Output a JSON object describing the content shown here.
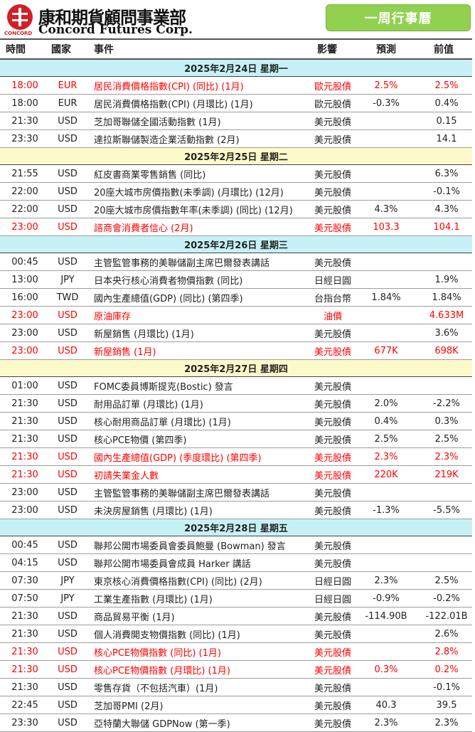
{
  "header": {
    "logo_sub": "CONCORD",
    "brand_cn": "康和期貨顧問事業部",
    "brand_en": "Concord Futures Corp.",
    "badge": "一周行事曆"
  },
  "columns": {
    "time": "時間",
    "country": "國家",
    "event": "事件",
    "impact": "影響",
    "forecast": "預測",
    "previous": "前值"
  },
  "days": [
    {
      "date": "2025年2月24日  星期一",
      "rows": [
        {
          "time": "18:00",
          "country": "EUR",
          "event": "居民消費價格指數(CPI) (同比) (1月)",
          "impact": "歐元股債",
          "forecast": "2.5%",
          "previous": "2.5%",
          "highlight": true
        },
        {
          "time": "18:00",
          "country": "EUR",
          "event": "居民消費價格指數(CPI) (月環比) (1月)",
          "impact": "歐元股債",
          "forecast": "-0.3%",
          "previous": "0.4%",
          "highlight": false
        },
        {
          "time": "21:30",
          "country": "USD",
          "event": "芝加哥聯儲全國活動指數 (1月)",
          "impact": "美元股債",
          "forecast": "",
          "previous": "0.15",
          "highlight": false
        },
        {
          "time": "23:30",
          "country": "USD",
          "event": "達拉斯聯儲製造企業活動指數 (2月)",
          "impact": "美元股債",
          "forecast": "",
          "previous": "14.1",
          "highlight": false
        }
      ]
    },
    {
      "date": "2025年2月25日  星期二",
      "rows": [
        {
          "time": "21:55",
          "country": "USD",
          "event": "紅皮書商業零售銷售 (同比)",
          "impact": "美元股債",
          "forecast": "",
          "previous": "6.3%",
          "highlight": false
        },
        {
          "time": "22:00",
          "country": "USD",
          "event": "20座大城市房價指數(未季調) (月環比) (12月)",
          "impact": "美元股債",
          "forecast": "",
          "previous": "-0.1%",
          "highlight": false
        },
        {
          "time": "22:00",
          "country": "USD",
          "event": "20座大城市房價指數年率(未季調) (同比) (12月)",
          "impact": "美元股債",
          "forecast": "4.3%",
          "previous": "4.3%",
          "highlight": false
        },
        {
          "time": "23:00",
          "country": "USD",
          "event": "諮商會消費者信心 (2月)",
          "impact": "美元股債",
          "forecast": "103.3",
          "previous": "104.1",
          "highlight": true
        }
      ]
    },
    {
      "date": "2025年2月26日  星期三",
      "rows": [
        {
          "time": "00:45",
          "country": "USD",
          "event": "主管監管事務的美聯儲副主席巴爾發表講話",
          "impact": "美元股債",
          "forecast": "",
          "previous": "",
          "highlight": false
        },
        {
          "time": "13:00",
          "country": "JPY",
          "event": "日本央行核心消費者物價指數 (同比)",
          "impact": "日經日圓",
          "forecast": "",
          "previous": "1.9%",
          "highlight": false
        },
        {
          "time": "16:00",
          "country": "TWD",
          "event": "國內生產總值(GDP) (同比) (第四季)",
          "impact": "台指台幣",
          "forecast": "1.84%",
          "previous": "1.84%",
          "highlight": false
        },
        {
          "time": "23:00",
          "country": "USD",
          "event": "原油庫存",
          "impact": "油價",
          "forecast": "",
          "previous": "4.633M",
          "highlight": true
        },
        {
          "time": "23:00",
          "country": "USD",
          "event": "新屋銷售 (月環比) (1月)",
          "impact": "美元股債",
          "forecast": "",
          "previous": "3.6%",
          "highlight": false
        },
        {
          "time": "23:00",
          "country": "USD",
          "event": "新屋銷售 (1月)",
          "impact": "美元股債",
          "forecast": "677K",
          "previous": "698K",
          "highlight": true
        }
      ]
    },
    {
      "date": "2025年2月27日  星期四",
      "rows": [
        {
          "time": "01:00",
          "country": "USD",
          "event": "FOMC委員博斯提克(Bostic) 發言",
          "impact": "美元股債",
          "forecast": "",
          "previous": "",
          "highlight": false
        },
        {
          "time": "21:30",
          "country": "USD",
          "event": "耐用品訂單 (月環比) (1月)",
          "impact": "美元股債",
          "forecast": "2.0%",
          "previous": "-2.2%",
          "highlight": false
        },
        {
          "time": "21:30",
          "country": "USD",
          "event": "核心耐用商品訂單 (月環比) (1月)",
          "impact": "美元股債",
          "forecast": "0.4%",
          "previous": "0.3%",
          "highlight": false
        },
        {
          "time": "21:30",
          "country": "USD",
          "event": "核心PCE物價 (第四季)",
          "impact": "美元股債",
          "forecast": "2.5%",
          "previous": "2.5%",
          "highlight": false
        },
        {
          "time": "21:30",
          "country": "USD",
          "event": "國內生產總值(GDP) (季度環比) (第四季)",
          "impact": "美元股債",
          "forecast": "2.3%",
          "previous": "2.3%",
          "highlight": true
        },
        {
          "time": "21:30",
          "country": "USD",
          "event": "初請失業金人數",
          "impact": "美元股債",
          "forecast": "220K",
          "previous": "219K",
          "highlight": true
        },
        {
          "time": "23:00",
          "country": "USD",
          "event": "主管監管事務的美聯儲副主席巴爾發表講話",
          "impact": "美元股債",
          "forecast": "",
          "previous": "",
          "highlight": false
        },
        {
          "time": "23:00",
          "country": "USD",
          "event": "未決房屋銷售 (月環比) (1月)",
          "impact": "美元股債",
          "forecast": "-1.3%",
          "previous": "-5.5%",
          "highlight": false
        }
      ]
    },
    {
      "date": "2025年2月28日  星期五",
      "rows": [
        {
          "time": "00:45",
          "country": "USD",
          "event": "聯邦公開市場委員會委員鮑曼 (Bowman) 發言",
          "impact": "美元股債",
          "forecast": "",
          "previous": "",
          "highlight": false
        },
        {
          "time": "04:15",
          "country": "USD",
          "event": "聯邦公開市場委員會成員 Harker 講話",
          "impact": "美元股債",
          "forecast": "",
          "previous": "",
          "highlight": false
        },
        {
          "time": "07:30",
          "country": "JPY",
          "event": "東京核心消費價格指數(CPI) (同比) (2月)",
          "impact": "日經日圓",
          "forecast": "2.3%",
          "previous": "2.5%",
          "highlight": false
        },
        {
          "time": "07:50",
          "country": "JPY",
          "event": "工業生產指數 (月環比) (1月)",
          "impact": "日經日圓",
          "forecast": "-0.9%",
          "previous": "-0.2%",
          "highlight": false
        },
        {
          "time": "21:30",
          "country": "USD",
          "event": "商品貿易平衡 (1月)",
          "impact": "美元股債",
          "forecast": "-114.90B",
          "previous": "-122.01B",
          "highlight": false
        },
        {
          "time": "21:30",
          "country": "USD",
          "event": "個人消費開支物價指數 (同比) (1月)",
          "impact": "美元股債",
          "forecast": "",
          "previous": "2.6%",
          "highlight": false
        },
        {
          "time": "21:30",
          "country": "USD",
          "event": "核心PCE物價指數 (同比) (1月)",
          "impact": "美元股債",
          "forecast": "",
          "previous": "2.8%",
          "highlight": true
        },
        {
          "time": "21:30",
          "country": "USD",
          "event": "核心PCE物價指數 (月環比) (1月)",
          "impact": "美元股債",
          "forecast": "0.3%",
          "previous": "0.2%",
          "highlight": true
        },
        {
          "time": "21:30",
          "country": "USD",
          "event": "零售存貨（不包括汽車）(1月)",
          "impact": "美元股債",
          "forecast": "",
          "previous": "-0.1%",
          "highlight": false
        },
        {
          "time": "22:45",
          "country": "USD",
          "event": "芝加哥PMI (2月)",
          "impact": "美元股債",
          "forecast": "40.3",
          "previous": "39.5",
          "highlight": false
        },
        {
          "time": "23:30",
          "country": "USD",
          "event": "亞特蘭大聯儲 GDPNow (第一季)",
          "impact": "美元股債",
          "forecast": "2.3%",
          "previous": "2.3%",
          "highlight": false
        }
      ]
    }
  ]
}
